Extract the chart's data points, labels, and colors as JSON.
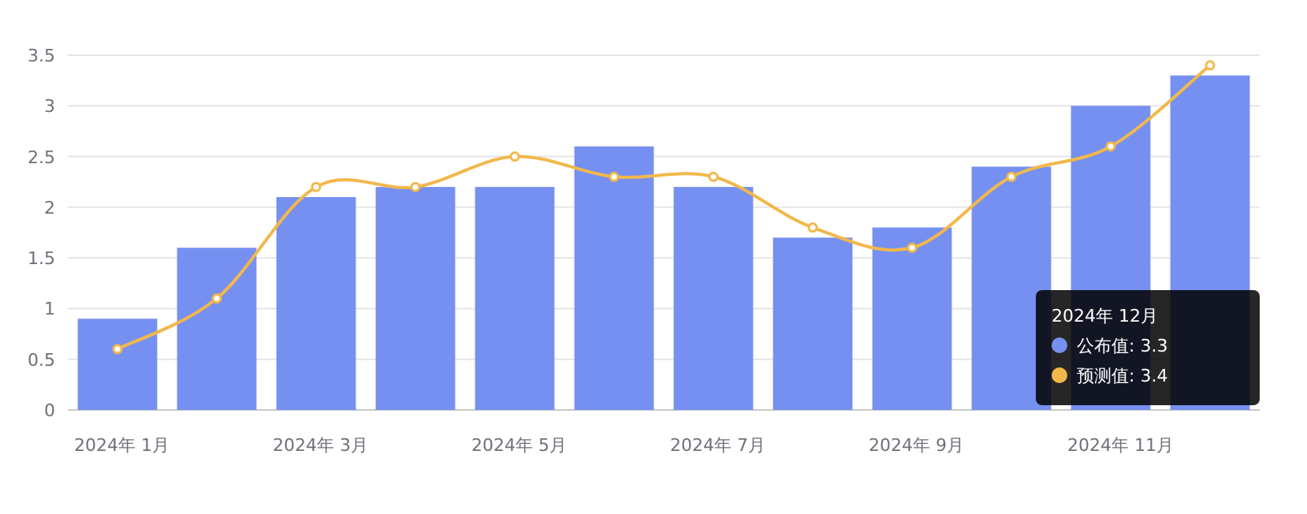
{
  "chart_data": {
    "type": "bar",
    "categories": [
      "2024年 1月",
      null,
      "2024年 3月",
      null,
      "2024年 5月",
      null,
      "2024年 7月",
      null,
      "2024年 9月",
      null,
      "2024年 11月",
      null
    ],
    "series": [
      {
        "color": "#7590f0",
        "values": [
          0.9,
          1.6,
          2.1,
          2.2,
          2.2,
          2.6,
          2.2,
          1.7,
          1.8,
          2.4,
          3.0,
          3.3
        ]
      },
      {
        "type": "line",
        "color": "#f2b84b",
        "values": [
          0.6,
          1.1,
          2.2,
          2.2,
          2.5,
          2.3,
          2.3,
          1.8,
          1.6,
          2.3,
          2.6,
          3.4
        ]
      }
    ],
    "ylim": [
      0,
      3.5
    ],
    "yticks": [
      0,
      0.5,
      1,
      1.5,
      2,
      2.5,
      3,
      3.5
    ],
    "grid": "y",
    "marker": "circle",
    "annotations": [
      "2024年 12月",
      "公布值: 3.3",
      "预测值: 3.4"
    ]
  }
}
